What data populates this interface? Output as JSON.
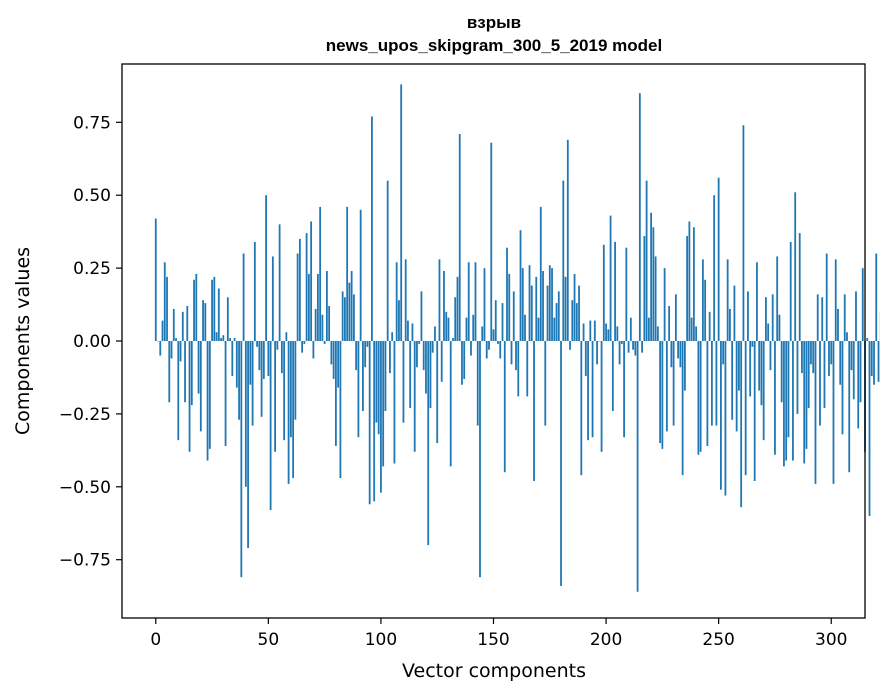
{
  "chart_data": {
    "type": "bar",
    "title": "взрыв",
    "subtitle": "news_upos_skipgram_300_5_2019 model",
    "xlabel": "Vector components",
    "ylabel": "Components values",
    "xlim": [
      -15,
      315
    ],
    "ylim": [
      -0.95,
      0.95
    ],
    "xticks": [
      0,
      50,
      100,
      150,
      200,
      250,
      300
    ],
    "xtick_labels": [
      "0",
      "50",
      "100",
      "150",
      "200",
      "250",
      "300"
    ],
    "yticks": [
      0.75,
      0.5,
      0.25,
      0.0,
      -0.25,
      -0.5,
      -0.75
    ],
    "ytick_labels": [
      "0.75",
      "0.50",
      "0.25",
      "0.00",
      "−0.25",
      "−0.50",
      "−0.75"
    ],
    "bar_color": "#1f77b4",
    "grid": false,
    "values": [
      0.42,
      0.0,
      -0.05,
      0.07,
      0.27,
      0.22,
      -0.21,
      -0.06,
      0.11,
      0.01,
      -0.34,
      -0.07,
      0.1,
      -0.21,
      0.12,
      -0.38,
      -0.22,
      0.21,
      0.23,
      -0.18,
      -0.31,
      0.14,
      0.13,
      -0.41,
      -0.37,
      0.21,
      0.22,
      0.03,
      0.18,
      0.01,
      0.02,
      -0.36,
      0.15,
      0.01,
      -0.12,
      0.01,
      -0.16,
      -0.27,
      -0.81,
      0.3,
      -0.5,
      -0.71,
      -0.15,
      -0.29,
      0.34,
      -0.02,
      -0.1,
      -0.26,
      -0.13,
      0.5,
      -0.12,
      -0.58,
      0.29,
      -0.38,
      -0.03,
      0.4,
      -0.11,
      -0.34,
      0.03,
      -0.49,
      -0.33,
      -0.47,
      -0.27,
      0.3,
      0.35,
      -0.04,
      -0.01,
      0.37,
      0.23,
      0.41,
      -0.06,
      0.11,
      0.23,
      0.46,
      0.09,
      -0.01,
      0.24,
      0.12,
      -0.08,
      -0.13,
      -0.36,
      -0.16,
      -0.47,
      0.17,
      0.15,
      0.46,
      0.2,
      0.24,
      0.16,
      -0.1,
      -0.33,
      0.45,
      -0.24,
      -0.09,
      -0.02,
      -0.56,
      0.77,
      -0.55,
      -0.28,
      -0.32,
      -0.52,
      -0.43,
      -0.24,
      0.55,
      -0.11,
      0.03,
      -0.42,
      0.27,
      0.14,
      0.88,
      -0.28,
      0.28,
      0.07,
      -0.23,
      0.06,
      -0.38,
      -0.09,
      -0.01,
      0.17,
      -0.1,
      -0.18,
      -0.7,
      -0.23,
      -0.04,
      0.05,
      -0.35,
      0.28,
      -0.14,
      0.24,
      0.1,
      0.08,
      -0.43,
      0.01,
      0.15,
      0.22,
      0.71,
      -0.15,
      -0.13,
      0.08,
      0.27,
      -0.05,
      0.09,
      0.27,
      -0.29,
      -0.81,
      0.05,
      0.25,
      -0.06,
      -0.03,
      0.68,
      0.04,
      0.14,
      -0.01,
      -0.06,
      0.13,
      -0.45,
      0.32,
      0.23,
      -0.08,
      0.17,
      -0.1,
      -0.19,
      0.38,
      0.25,
      0.09,
      -0.19,
      0.26,
      0.19,
      -0.48,
      0.22,
      0.08,
      0.46,
      0.24,
      -0.29,
      0.19,
      0.26,
      0.25,
      0.08,
      0.13,
      0.17,
      -0.84,
      0.55,
      0.22,
      0.69,
      -0.03,
      0.14,
      0.23,
      0.13,
      0.19,
      -0.46,
      0.06,
      -0.12,
      -0.34,
      0.07,
      -0.33,
      0.07,
      -0.08,
      0.0,
      -0.38,
      0.33,
      0.06,
      0.04,
      0.43,
      -0.24,
      0.34,
      0.05,
      -0.08,
      -0.01,
      -0.33,
      0.32,
      -0.04,
      0.08,
      -0.03,
      -0.05,
      -0.86,
      0.85,
      -0.04,
      0.36,
      0.55,
      0.08,
      0.44,
      0.39,
      0.29,
      0.05,
      -0.35,
      -0.37,
      0.25,
      -0.31,
      0.12,
      -0.09,
      -0.29,
      0.16,
      -0.06,
      -0.09,
      -0.46,
      -0.17,
      0.36,
      0.41,
      0.08,
      0.39,
      0.05,
      -0.39,
      -0.38,
      0.28,
      0.21,
      -0.36,
      0.1,
      -0.29,
      0.5,
      -0.29,
      0.56,
      -0.51,
      -0.08,
      -0.53,
      0.28,
      0.11,
      -0.27,
      0.19,
      -0.31,
      -0.17,
      -0.57,
      0.74,
      -0.46,
      0.17,
      -0.19,
      -0.02,
      -0.48,
      0.27,
      -0.17,
      -0.22,
      -0.34,
      0.15,
      0.06,
      -0.1,
      0.16,
      -0.39,
      0.29,
      0.09,
      -0.21,
      -0.43,
      -0.41,
      -0.33,
      0.34,
      -0.41,
      0.51,
      -0.25,
      0.37,
      -0.11,
      -0.42,
      -0.37,
      -0.23,
      -0.08,
      -0.11,
      -0.49,
      0.16,
      -0.29,
      0.15,
      -0.23,
      0.3,
      -0.12,
      -0.08,
      -0.49,
      0.28,
      0.11,
      -0.15,
      -0.32,
      0.16,
      0.03,
      -0.45,
      -0.1,
      -0.2,
      0.17,
      -0.3,
      -0.21,
      0.25,
      -0.38,
      0.01,
      -0.6,
      -0.12,
      -0.15,
      0.3,
      -0.14,
      0.1
    ]
  }
}
